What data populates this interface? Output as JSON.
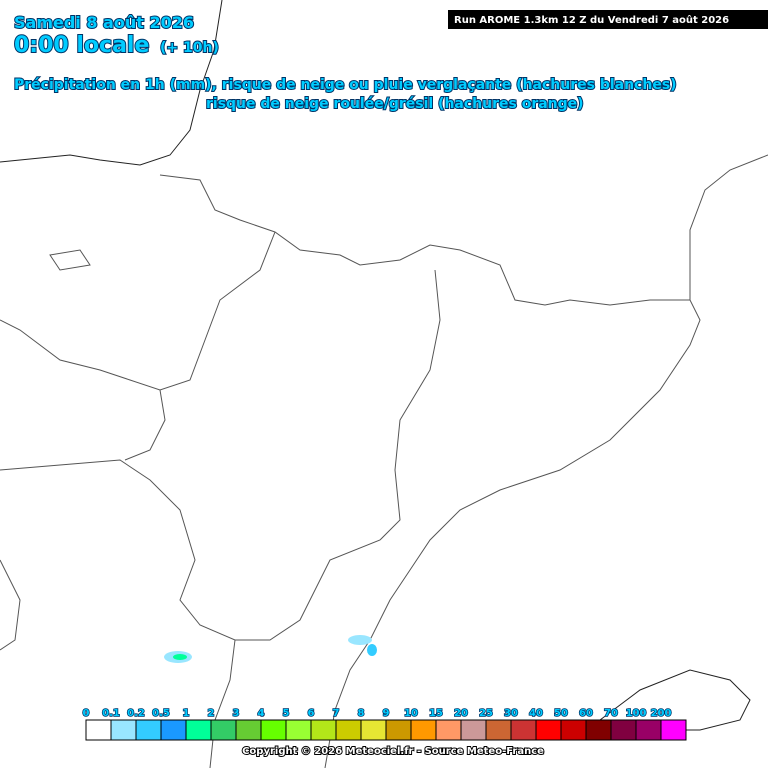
{
  "header": {
    "date": "Samedi 8 août 2026",
    "time": "0:00 locale",
    "offset": "(+ 10h)",
    "line1": "Précipitation en 1h (mm), risque de neige ou pluie verglaçante (hachures blanches)",
    "line2": "risque de neige roulée/grésil (hachures orange)"
  },
  "run": "Run AROME 1.3km 12 Z du Vendredi 7 août 2026",
  "legend": {
    "items": [
      {
        "label": "0",
        "color": "#ffffff"
      },
      {
        "label": "0.1",
        "color": "#99e6ff"
      },
      {
        "label": "0.2",
        "color": "#33ccff"
      },
      {
        "label": "0.5",
        "color": "#1a99ff"
      },
      {
        "label": "1",
        "color": "#00ff99"
      },
      {
        "label": "2",
        "color": "#33cc66"
      },
      {
        "label": "3",
        "color": "#66cc33"
      },
      {
        "label": "4",
        "color": "#66ff00"
      },
      {
        "label": "5",
        "color": "#99ff33"
      },
      {
        "label": "6",
        "color": "#b3e619"
      },
      {
        "label": "7",
        "color": "#cccc00"
      },
      {
        "label": "8",
        "color": "#e6e633"
      },
      {
        "label": "9",
        "color": "#cc9900"
      },
      {
        "label": "10",
        "color": "#ff9900"
      },
      {
        "label": "15",
        "color": "#ff9966"
      },
      {
        "label": "20",
        "color": "#cc9999"
      },
      {
        "label": "25",
        "color": "#cc6633"
      },
      {
        "label": "30",
        "color": "#cc3333"
      },
      {
        "label": "40",
        "color": "#ff0000"
      },
      {
        "label": "50",
        "color": "#cc0000"
      },
      {
        "label": "60",
        "color": "#800000"
      },
      {
        "label": "70",
        "color": "#800040"
      },
      {
        "label": "100",
        "color": "#990066"
      },
      {
        "label": "200",
        "color": "#ff00ff"
      }
    ]
  },
  "copyright": "Copyright © 2026 Meteociel.fr - Source Meteo-France"
}
